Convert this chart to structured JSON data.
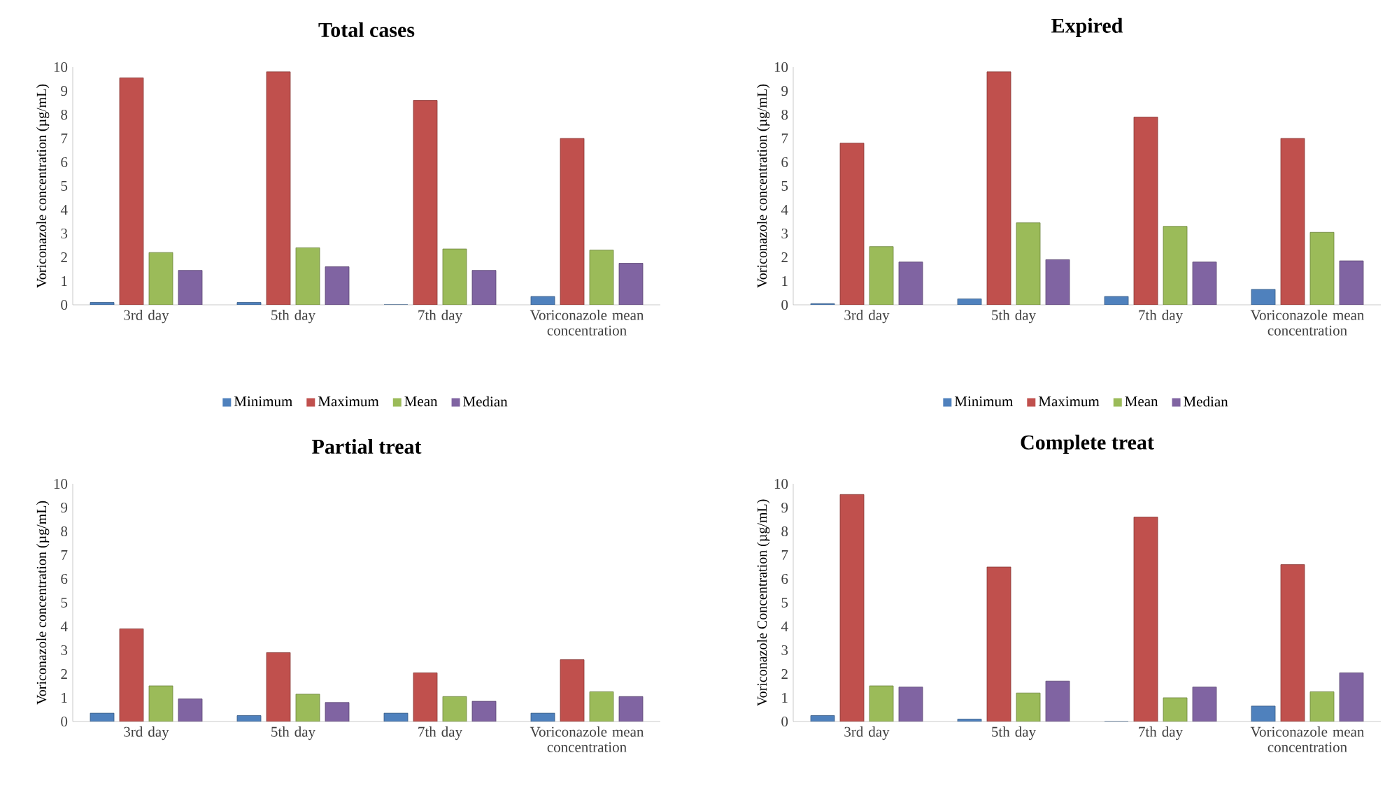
{
  "chart_data": [
    {
      "type": "bar",
      "title": "Total cases",
      "ylabel": "Voriconazole concentration (µg/mL)",
      "categories": [
        "3rd day",
        "5th day",
        "7th day",
        "Voriconazole mean concentration"
      ],
      "ylim": [
        0,
        10
      ],
      "yticks": [
        0,
        1,
        2,
        3,
        4,
        5,
        6,
        7,
        8,
        9,
        10
      ],
      "legend": "bottom",
      "series": [
        {
          "name": "Minimum",
          "color": "#4f81bd",
          "values": [
            0.1,
            0.1,
            0,
            0.35
          ]
        },
        {
          "name": "Maximum",
          "color": "#c0504d",
          "values": [
            9.55,
            9.8,
            8.6,
            7.0
          ]
        },
        {
          "name": "Mean",
          "color": "#9bbb59",
          "values": [
            2.2,
            2.4,
            2.35,
            2.3
          ]
        },
        {
          "name": "Median",
          "color": "#8064a2",
          "values": [
            1.45,
            1.6,
            1.45,
            1.75
          ]
        }
      ]
    },
    {
      "type": "bar",
      "title": "Expired",
      "ylabel": "Voriconazole concentration (µg/mL)",
      "categories": [
        "3rd day",
        "5th day",
        "7th day",
        "Voriconazole mean concentration"
      ],
      "ylim": [
        0,
        10
      ],
      "yticks": [
        0,
        1,
        2,
        3,
        4,
        5,
        6,
        7,
        8,
        9,
        10
      ],
      "legend": "bottom",
      "series": [
        {
          "name": "Minimum",
          "color": "#4f81bd",
          "values": [
            0.05,
            0.25,
            0.35,
            0.65
          ]
        },
        {
          "name": "Maximum",
          "color": "#c0504d",
          "values": [
            6.8,
            9.8,
            7.9,
            7.0
          ]
        },
        {
          "name": "Mean",
          "color": "#9bbb59",
          "values": [
            2.45,
            3.45,
            3.3,
            3.05
          ]
        },
        {
          "name": "Median",
          "color": "#8064a2",
          "values": [
            1.8,
            1.9,
            1.8,
            1.85
          ]
        }
      ]
    },
    {
      "type": "bar",
      "title": "Partial treat",
      "ylabel": "Voriconazole concentration (µg/mL)",
      "categories": [
        "3rd day",
        "5th day",
        "7th day",
        "Voriconazole mean concentration"
      ],
      "ylim": [
        0,
        10
      ],
      "yticks": [
        0,
        1,
        2,
        3,
        4,
        5,
        6,
        7,
        8,
        9,
        10
      ],
      "legend": "bottom",
      "series": [
        {
          "name": "Minimum",
          "color": "#4f81bd",
          "values": [
            0.35,
            0.25,
            0.35,
            0.35
          ]
        },
        {
          "name": "Maximum",
          "color": "#c0504d",
          "values": [
            3.9,
            2.9,
            2.05,
            2.6
          ]
        },
        {
          "name": "Mean",
          "color": "#9bbb59",
          "values": [
            1.5,
            1.15,
            1.05,
            1.25
          ]
        },
        {
          "name": "Median",
          "color": "#8064a2",
          "values": [
            0.95,
            0.8,
            0.85,
            1.05
          ]
        }
      ]
    },
    {
      "type": "bar",
      "title": "Complete treat",
      "ylabel": "Voriconazole Concentration (µg/mL)",
      "categories": [
        "3rd day",
        "5th day",
        "7th day",
        "Voriconazole mean concentration"
      ],
      "ylim": [
        0,
        10
      ],
      "yticks": [
        0,
        1,
        2,
        3,
        4,
        5,
        6,
        7,
        8,
        9,
        10
      ],
      "legend": "bottom",
      "series": [
        {
          "name": "Minimum",
          "color": "#4f81bd",
          "values": [
            0.25,
            0.1,
            0,
            0.65
          ]
        },
        {
          "name": "Maximum",
          "color": "#c0504d",
          "values": [
            9.55,
            6.5,
            8.6,
            6.6
          ]
        },
        {
          "name": "Mean",
          "color": "#9bbb59",
          "values": [
            1.5,
            1.2,
            1.0,
            1.25
          ]
        },
        {
          "name": "Median",
          "color": "#8064a2",
          "values": [
            1.45,
            1.7,
            1.45,
            2.05
          ]
        }
      ]
    }
  ]
}
